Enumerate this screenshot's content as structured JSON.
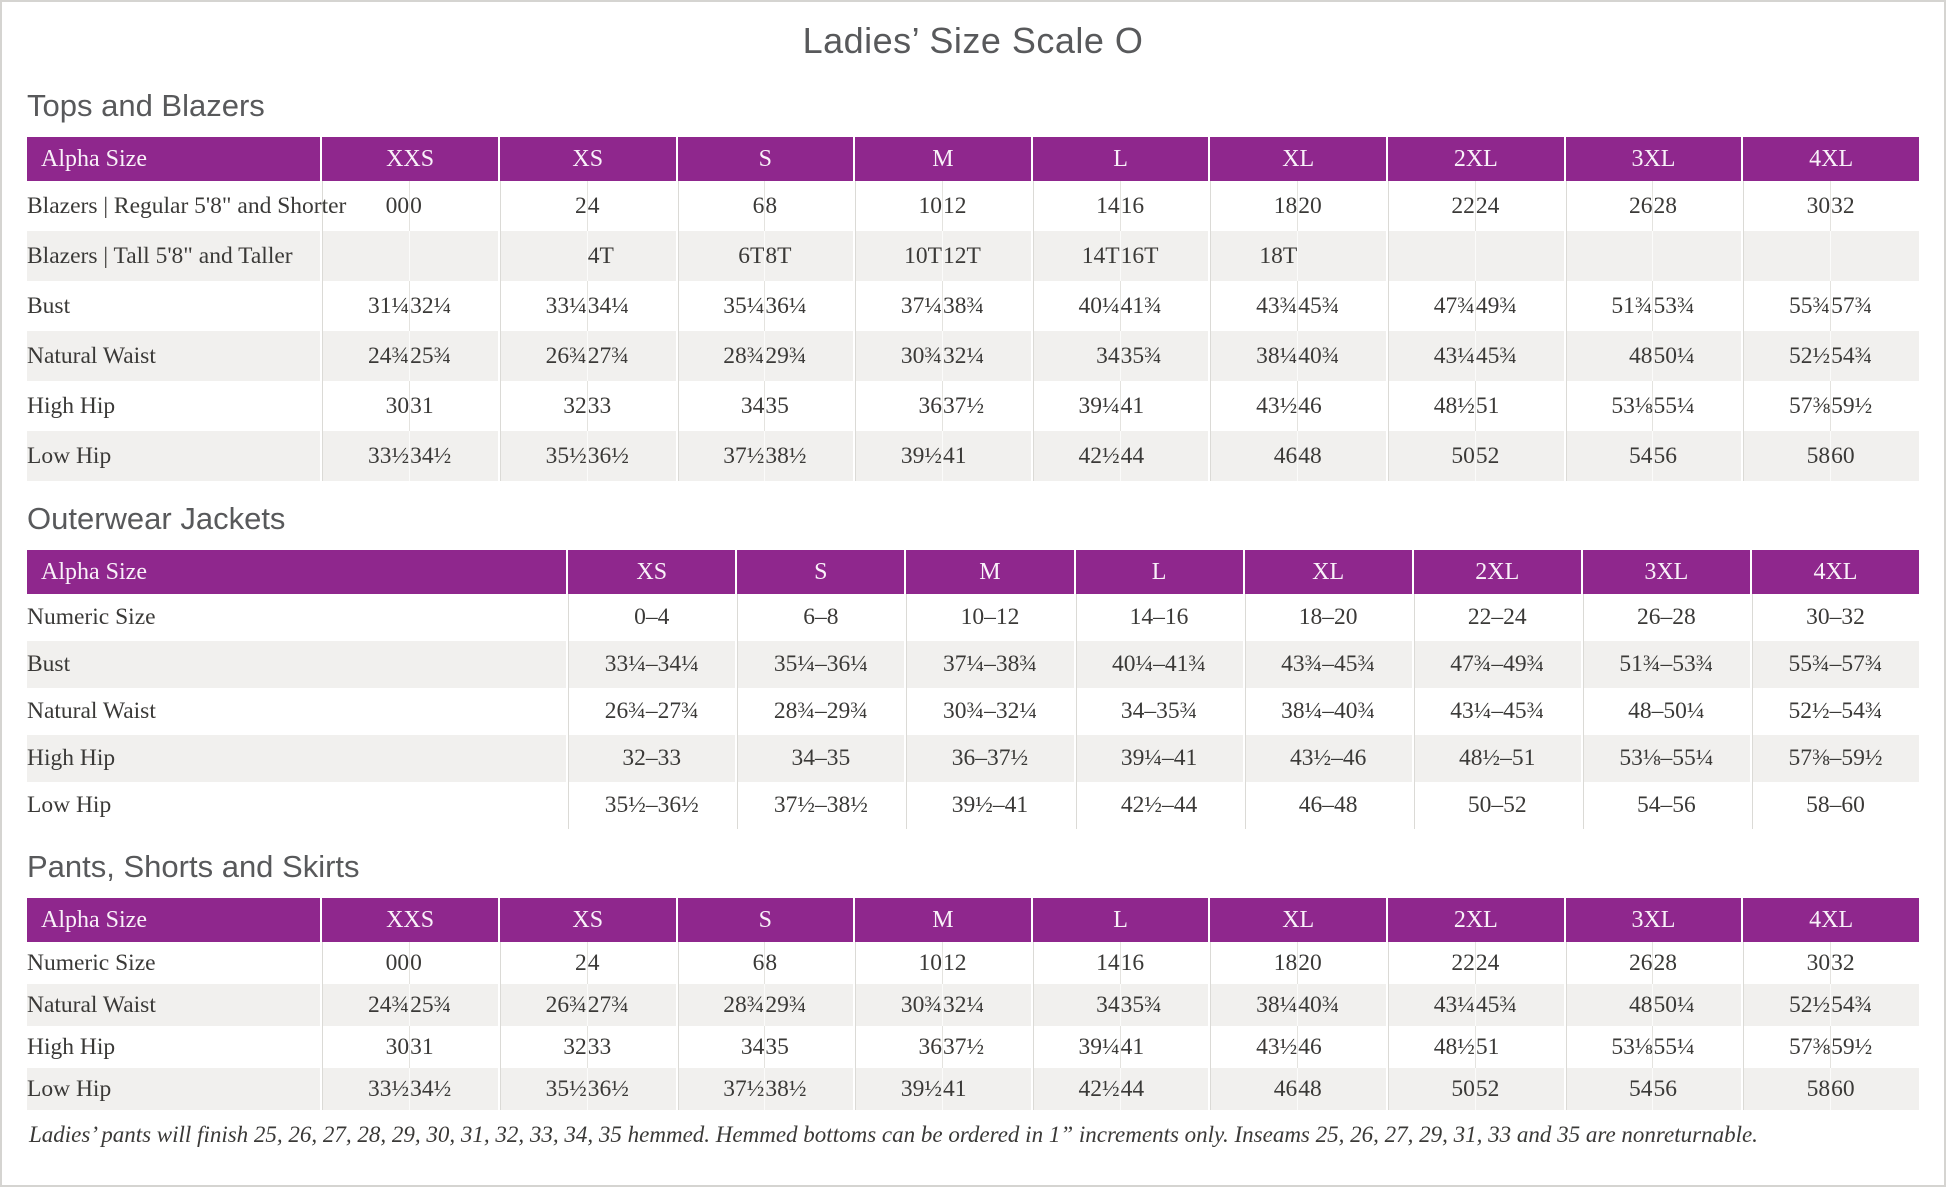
{
  "title": "Ladies’ Size Scale O",
  "colors": {
    "header_bg": "#8f278d",
    "stripe": "#f1f0ee",
    "heading_text": "#58595b",
    "body_text": "#3a3937"
  },
  "tables": [
    {
      "heading": "Tops and Blazers",
      "corner_label": "Alpha Size",
      "split": true,
      "groups": [
        "XXS",
        "XS",
        "S",
        "M",
        "L",
        "XL",
        "2XL",
        "3XL",
        "4XL"
      ],
      "rows": [
        {
          "label": "Blazers | Regular 5'8\" and Shorter",
          "cells": [
            "00",
            "0",
            "2",
            "4",
            "6",
            "8",
            "10",
            "12",
            "14",
            "16",
            "18",
            "20",
            "22",
            "24",
            "26",
            "28",
            "30",
            "32"
          ]
        },
        {
          "label": "Blazers | Tall 5'8\" and Taller",
          "cells": [
            "",
            "",
            "",
            "4T",
            "6T",
            "8T",
            "10T",
            "12T",
            "14T",
            "16T",
            "18T",
            "",
            "",
            "",
            "",
            "",
            "",
            ""
          ]
        },
        {
          "label": "Bust",
          "cells": [
            "31¼",
            "32¼",
            "33¼",
            "34¼",
            "35¼",
            "36¼",
            "37¼",
            "38¾",
            "40¼",
            "41¾",
            "43¾",
            "45¾",
            "47¾",
            "49¾",
            "51¾",
            "53¾",
            "55¾",
            "57¾"
          ]
        },
        {
          "label": "Natural Waist",
          "cells": [
            "24¾",
            "25¾",
            "26¾",
            "27¾",
            "28¾",
            "29¾",
            "30¾",
            "32¼",
            "34",
            "35¾",
            "38¼",
            "40¾",
            "43¼",
            "45¾",
            "48",
            "50¼",
            "52½",
            "54¾"
          ]
        },
        {
          "label": "High Hip",
          "cells": [
            "30",
            "31",
            "32",
            "33",
            "34",
            "35",
            "36",
            "37½",
            "39¼",
            "41",
            "43½",
            "46",
            "48½",
            "51",
            "53⅛",
            "55¼",
            "57⅜",
            "59½"
          ]
        },
        {
          "label": "Low Hip",
          "cells": [
            "33½",
            "34½",
            "35½",
            "36½",
            "37½",
            "38½",
            "39½",
            "41",
            "42½",
            "44",
            "46",
            "48",
            "50",
            "52",
            "54",
            "56",
            "58",
            "60"
          ]
        }
      ]
    },
    {
      "heading": "Outerwear Jackets",
      "corner_label": "Alpha Size",
      "split": false,
      "groups": [
        "XS",
        "S",
        "M",
        "L",
        "XL",
        "2XL",
        "3XL",
        "4XL"
      ],
      "rows": [
        {
          "label": "Numeric Size",
          "cells": [
            "0–4",
            "6–8",
            "10–12",
            "14–16",
            "18–20",
            "22–24",
            "26–28",
            "30–32"
          ]
        },
        {
          "label": "Bust",
          "cells": [
            "33¼–34¼",
            "35¼–36¼",
            "37¼–38¾",
            "40¼–41¾",
            "43¾–45¾",
            "47¾–49¾",
            "51¾–53¾",
            "55¾–57¾"
          ]
        },
        {
          "label": "Natural Waist",
          "cells": [
            "26¾–27¾",
            "28¾–29¾",
            "30¾–32¼",
            "34–35¾",
            "38¼–40¾",
            "43¼–45¾",
            "48–50¼",
            "52½–54¾"
          ]
        },
        {
          "label": "High Hip",
          "cells": [
            "32–33",
            "34–35",
            "36–37½",
            "39¼–41",
            "43½–46",
            "48½–51",
            "53⅛–55¼",
            "57⅜–59½"
          ]
        },
        {
          "label": "Low Hip",
          "cells": [
            "35½–36½",
            "37½–38½",
            "39½–41",
            "42½–44",
            "46–48",
            "50–52",
            "54–56",
            "58–60"
          ]
        }
      ]
    },
    {
      "heading": "Pants, Shorts and Skirts",
      "corner_label": "Alpha Size",
      "split": true,
      "groups": [
        "XXS",
        "XS",
        "S",
        "M",
        "L",
        "XL",
        "2XL",
        "3XL",
        "4XL"
      ],
      "rows": [
        {
          "label": "Numeric Size",
          "cells": [
            "00",
            "0",
            "2",
            "4",
            "6",
            "8",
            "10",
            "12",
            "14",
            "16",
            "18",
            "20",
            "22",
            "24",
            "26",
            "28",
            "30",
            "32"
          ]
        },
        {
          "label": "Natural Waist",
          "cells": [
            "24¾",
            "25¾",
            "26¾",
            "27¾",
            "28¾",
            "29¾",
            "30¾",
            "32¼",
            "34",
            "35¾",
            "38¼",
            "40¾",
            "43¼",
            "45¾",
            "48",
            "50¼",
            "52½",
            "54¾"
          ]
        },
        {
          "label": "High Hip",
          "cells": [
            "30",
            "31",
            "32",
            "33",
            "34",
            "35",
            "36",
            "37½",
            "39¼",
            "41",
            "43½",
            "46",
            "48½",
            "51",
            "53⅛",
            "55¼",
            "57⅜",
            "59½"
          ]
        },
        {
          "label": "Low Hip",
          "cells": [
            "33½",
            "34½",
            "35½",
            "36½",
            "37½",
            "38½",
            "39½",
            "41",
            "42½",
            "44",
            "46",
            "48",
            "50",
            "52",
            "54",
            "56",
            "58",
            "60"
          ]
        }
      ]
    }
  ],
  "footnote": "Ladies’ pants will finish 25, 26, 27, 28, 29, 30, 31, 32, 33, 34, 35 hemmed. Hemmed bottoms can be ordered in 1” increments only. Inseams 25, 26, 27, 29, 31, 33 and 35 are nonreturnable."
}
